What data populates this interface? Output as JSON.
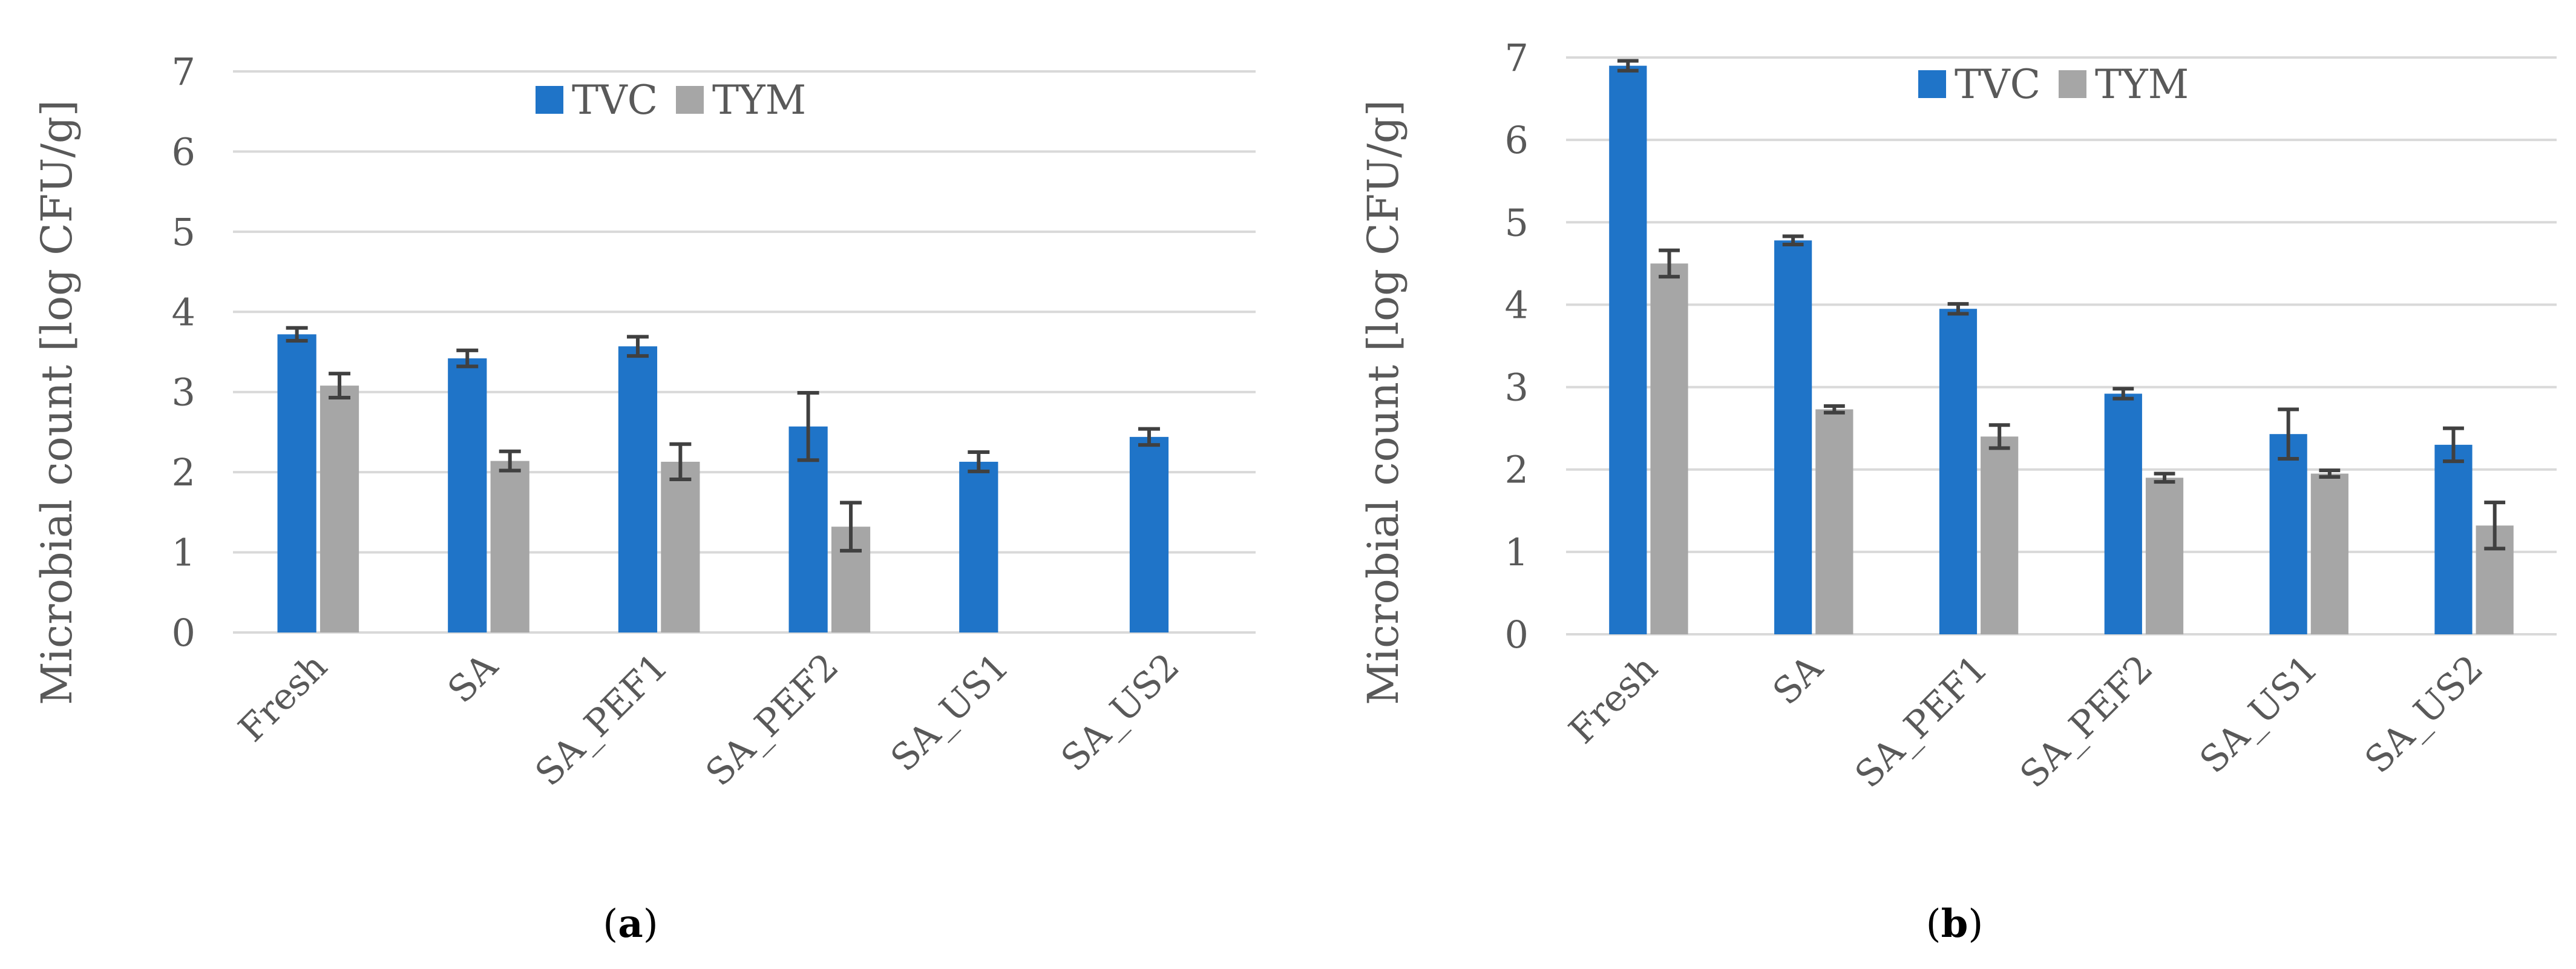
{
  "chart_data": [
    {
      "type": "bar",
      "panel_label": "a",
      "ylabel": "Microbial count [log CFU/g]",
      "ylim": [
        0,
        7
      ],
      "yticks": [
        0,
        1,
        2,
        3,
        4,
        5,
        6,
        7
      ],
      "legend_position": "top-center",
      "grid": true,
      "categories": [
        "Fresh",
        "SA",
        "SA_PEF1",
        "SA_PEF2",
        "SA_US1",
        "SA_US2"
      ],
      "series": [
        {
          "name": "TVC",
          "color": "#1f74c8",
          "values": [
            3.72,
            3.42,
            3.57,
            2.57,
            2.13,
            2.44
          ],
          "errors": [
            0.08,
            0.1,
            0.12,
            0.42,
            0.12,
            0.1
          ]
        },
        {
          "name": "TYM",
          "color": "#a6a6a6",
          "values": [
            3.08,
            2.14,
            2.13,
            1.32,
            null,
            null
          ],
          "errors": [
            0.15,
            0.12,
            0.22,
            0.3,
            null,
            null
          ]
        }
      ]
    },
    {
      "type": "bar",
      "panel_label": "b",
      "ylabel": "Microbial count [log CFU/g]",
      "ylim": [
        0,
        7
      ],
      "yticks": [
        0,
        1,
        2,
        3,
        4,
        5,
        6,
        7
      ],
      "legend_position": "top-center",
      "grid": true,
      "categories": [
        "Fresh",
        "SA",
        "SA_PEF1",
        "SA_PEF2",
        "SA_US1",
        "SA_US2"
      ],
      "series": [
        {
          "name": "TVC",
          "color": "#1f74c8",
          "values": [
            6.9,
            4.78,
            3.95,
            2.92,
            2.43,
            2.3
          ],
          "errors": [
            0.06,
            0.05,
            0.06,
            0.06,
            0.3,
            0.2
          ]
        },
        {
          "name": "TYM",
          "color": "#a6a6a6",
          "values": [
            4.5,
            2.73,
            2.4,
            1.9,
            1.95,
            1.32
          ],
          "errors": [
            0.16,
            0.04,
            0.14,
            0.05,
            0.04,
            0.28
          ]
        }
      ]
    }
  ]
}
